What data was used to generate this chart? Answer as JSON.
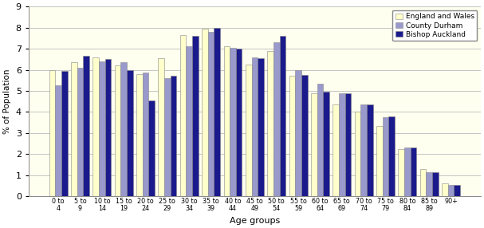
{
  "age_groups": [
    "0 to\n4",
    "5 to\n9",
    "10 to\n14",
    "15 to\n19",
    "20 to\n24",
    "25 to\n29",
    "30 to\n34",
    "35 to\n39",
    "40 to\n44",
    "45 to\n49",
    "50 to\n54",
    "55 to\n59",
    "60 to\n64",
    "65 to\n69",
    "70 to\n74",
    "75 to\n79",
    "80 to\n84",
    "85 to\n89",
    "90+"
  ],
  "england_wales": [
    6.0,
    6.35,
    6.6,
    6.2,
    5.8,
    6.55,
    7.65,
    7.95,
    7.1,
    6.25,
    6.9,
    5.7,
    4.9,
    4.35,
    4.0,
    3.35,
    2.25,
    1.3,
    0.6
  ],
  "county_durham": [
    5.25,
    6.1,
    6.4,
    6.35,
    5.85,
    5.6,
    7.1,
    7.8,
    7.05,
    6.6,
    7.3,
    6.0,
    5.35,
    4.9,
    4.35,
    3.75,
    2.3,
    1.15,
    0.55
  ],
  "bishop_auckland": [
    5.95,
    6.65,
    6.5,
    6.0,
    4.55,
    5.7,
    7.6,
    8.0,
    7.0,
    6.55,
    7.6,
    5.75,
    4.95,
    4.9,
    4.35,
    3.8,
    2.3,
    1.15,
    0.55
  ],
  "ylabel": "% of Population",
  "xlabel": "Age groups",
  "ylim": [
    0,
    9
  ],
  "yticks": [
    0,
    1,
    2,
    3,
    4,
    5,
    6,
    7,
    8,
    9
  ],
  "legend_labels": [
    "England and Wales",
    "County Durham",
    "Bishop Auckland"
  ],
  "bar_colors": [
    "#ffffcc",
    "#9999cc",
    "#1a1a8c"
  ],
  "bar_edgecolor": "#888888",
  "bg_color": "#ffffff",
  "plot_bg_color": "#fffff0",
  "grid_color": "#bbbbbb"
}
